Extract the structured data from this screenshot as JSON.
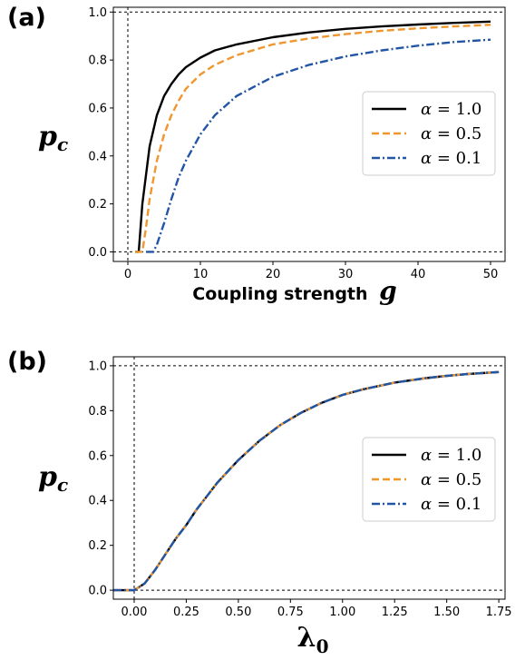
{
  "chart_data": [
    {
      "panel_label": "(a)",
      "type": "line",
      "xlabel": "Coupling strength",
      "xlabel_var": "g",
      "ylabel_var": "p",
      "ylabel_sub": "c",
      "xlim": [
        -2,
        52
      ],
      "ylim": [
        -0.04,
        1.02
      ],
      "xticks": [
        "0",
        "10",
        "20",
        "30",
        "40",
        "50"
      ],
      "xtick_values": [
        0,
        10,
        20,
        30,
        40,
        50
      ],
      "yticks": [
        "0.0",
        "0.2",
        "0.4",
        "0.6",
        "0.8",
        "1.0"
      ],
      "ytick_values": [
        0,
        0.2,
        0.4,
        0.6,
        0.8,
        1.0
      ],
      "reference_lines": [
        {
          "orientation": "vertical",
          "value": 0
        },
        {
          "orientation": "horizontal",
          "value": 0
        },
        {
          "orientation": "horizontal",
          "value": 1
        }
      ],
      "legend_position": "center-right",
      "grid": false,
      "series": [
        {
          "name": "α = 1.0",
          "alpha_value": "1.0",
          "color": "#000000",
          "style": "solid",
          "x": [
            1.0,
            1.5,
            2,
            3,
            4,
            5,
            6,
            7,
            8,
            10,
            12,
            15,
            20,
            25,
            30,
            35,
            40,
            45,
            50
          ],
          "y": [
            0.0,
            0.0,
            0.2,
            0.44,
            0.57,
            0.65,
            0.7,
            0.74,
            0.77,
            0.81,
            0.84,
            0.865,
            0.895,
            0.915,
            0.93,
            0.94,
            0.948,
            0.955,
            0.96
          ]
        },
        {
          "name": "α = 0.5",
          "alpha_value": "0.5",
          "color": "#F0962E",
          "style": "dashed",
          "x": [
            1.0,
            2,
            2.5,
            3,
            4,
            5,
            6,
            7,
            8,
            10,
            12,
            15,
            20,
            25,
            30,
            35,
            40,
            45,
            50
          ],
          "y": [
            0.0,
            0.0,
            0.1,
            0.22,
            0.38,
            0.49,
            0.57,
            0.63,
            0.68,
            0.74,
            0.78,
            0.82,
            0.865,
            0.89,
            0.908,
            0.922,
            0.932,
            0.94,
            0.947
          ]
        },
        {
          "name": "α = 0.1",
          "alpha_value": "0.1",
          "color": "#2255A4",
          "style": "dashdot",
          "x": [
            2.5,
            3.5,
            4,
            5,
            6,
            7,
            8,
            10,
            12,
            15,
            20,
            25,
            30,
            35,
            40,
            45,
            50
          ],
          "y": [
            0.0,
            0.0,
            0.03,
            0.12,
            0.22,
            0.31,
            0.38,
            0.49,
            0.57,
            0.65,
            0.73,
            0.78,
            0.815,
            0.84,
            0.86,
            0.875,
            0.885
          ]
        }
      ]
    },
    {
      "panel_label": "(b)",
      "type": "line",
      "xlabel_var": "λ",
      "xlabel_sub": "0",
      "ylabel_var": "p",
      "ylabel_sub": "c",
      "xlim": [
        -0.1,
        1.78
      ],
      "ylim": [
        -0.04,
        1.04
      ],
      "xticks": [
        "0.00",
        "0.25",
        "0.50",
        "0.75",
        "1.00",
        "1.25",
        "1.50",
        "1.75"
      ],
      "xtick_values": [
        0,
        0.25,
        0.5,
        0.75,
        1.0,
        1.25,
        1.5,
        1.75
      ],
      "yticks": [
        "0.0",
        "0.2",
        "0.4",
        "0.6",
        "0.8",
        "1.0"
      ],
      "ytick_values": [
        0,
        0.2,
        0.4,
        0.6,
        0.8,
        1.0
      ],
      "reference_lines": [
        {
          "orientation": "vertical",
          "value": 0
        },
        {
          "orientation": "horizontal",
          "value": 0
        },
        {
          "orientation": "horizontal",
          "value": 1
        }
      ],
      "legend_position": "center-right",
      "grid": false,
      "series": [
        {
          "name": "α = 1.0",
          "alpha_value": "1.0",
          "color": "#000000",
          "style": "solid",
          "x": [
            -0.1,
            0.0,
            0.05,
            0.1,
            0.15,
            0.2,
            0.25,
            0.3,
            0.35,
            0.4,
            0.5,
            0.6,
            0.7,
            0.8,
            0.9,
            1.0,
            1.1,
            1.25,
            1.4,
            1.5,
            1.6,
            1.75
          ],
          "y": [
            0.0,
            0.0,
            0.03,
            0.09,
            0.16,
            0.23,
            0.29,
            0.36,
            0.42,
            0.48,
            0.58,
            0.665,
            0.735,
            0.79,
            0.835,
            0.87,
            0.895,
            0.925,
            0.945,
            0.955,
            0.963,
            0.972
          ]
        },
        {
          "name": "α = 0.5",
          "alpha_value": "0.5",
          "color": "#F0962E",
          "style": "dashed",
          "x": [
            -0.1,
            0.0,
            0.05,
            0.1,
            0.15,
            0.2,
            0.25,
            0.3,
            0.35,
            0.4,
            0.5,
            0.6,
            0.7,
            0.8,
            0.9,
            1.0,
            1.1,
            1.25,
            1.4,
            1.5,
            1.6,
            1.75
          ],
          "y": [
            0.0,
            0.0,
            0.03,
            0.09,
            0.16,
            0.23,
            0.29,
            0.36,
            0.42,
            0.48,
            0.58,
            0.665,
            0.735,
            0.79,
            0.835,
            0.87,
            0.895,
            0.925,
            0.945,
            0.955,
            0.963,
            0.972
          ]
        },
        {
          "name": "α = 0.1",
          "alpha_value": "0.1",
          "color": "#2255A4",
          "style": "dashdot",
          "x": [
            -0.1,
            0.0,
            0.05,
            0.1,
            0.15,
            0.2,
            0.25,
            0.3,
            0.35,
            0.4,
            0.5,
            0.6,
            0.7,
            0.8,
            0.9,
            1.0,
            1.1,
            1.25,
            1.4,
            1.5,
            1.6,
            1.75
          ],
          "y": [
            0.0,
            0.0,
            0.03,
            0.09,
            0.16,
            0.23,
            0.29,
            0.36,
            0.42,
            0.48,
            0.58,
            0.665,
            0.735,
            0.79,
            0.835,
            0.87,
            0.895,
            0.925,
            0.945,
            0.955,
            0.963,
            0.972
          ]
        }
      ]
    }
  ]
}
